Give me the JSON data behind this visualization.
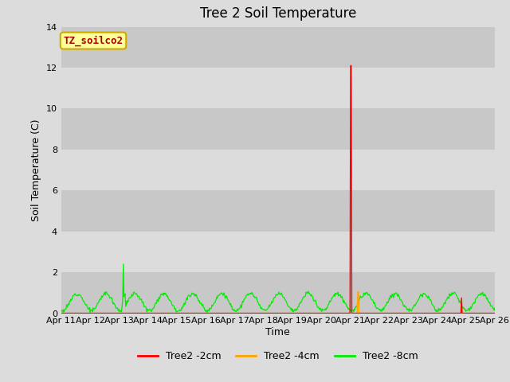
{
  "title": "Tree 2 Soil Temperature",
  "ylabel": "Soil Temperature (C)",
  "xlabel": "Time",
  "annotation_text": "TZ_soilco2",
  "annotation_bg": "#FFFF99",
  "annotation_border": "#CCAA00",
  "annotation_text_color": "#AA0000",
  "ylim": [
    0,
    14
  ],
  "yticks": [
    0,
    2,
    4,
    6,
    8,
    10,
    12,
    14
  ],
  "bg_color": "#DCDCDC",
  "plot_bg_light": "#DCDCDC",
  "plot_bg_dark": "#C8C8C8",
  "line_colors": {
    "2cm": "#FF0000",
    "4cm": "#FFA500",
    "8cm": "#00EE00"
  },
  "legend_labels": [
    "Tree2 -2cm",
    "Tree2 -4cm",
    "Tree2 -8cm"
  ],
  "x_tick_labels": [
    "Apr 11",
    "Apr 12",
    "Apr 13",
    "Apr 14",
    "Apr 15",
    "Apr 16",
    "Apr 17",
    "Apr 18",
    "Apr 19",
    "Apr 20",
    "Apr 21",
    "Apr 22",
    "Apr 23",
    "Apr 24",
    "Apr 25",
    "Apr 26"
  ],
  "num_days": 15,
  "points_per_day": 48,
  "title_fontsize": 12,
  "tick_fontsize": 8,
  "label_fontsize": 9
}
